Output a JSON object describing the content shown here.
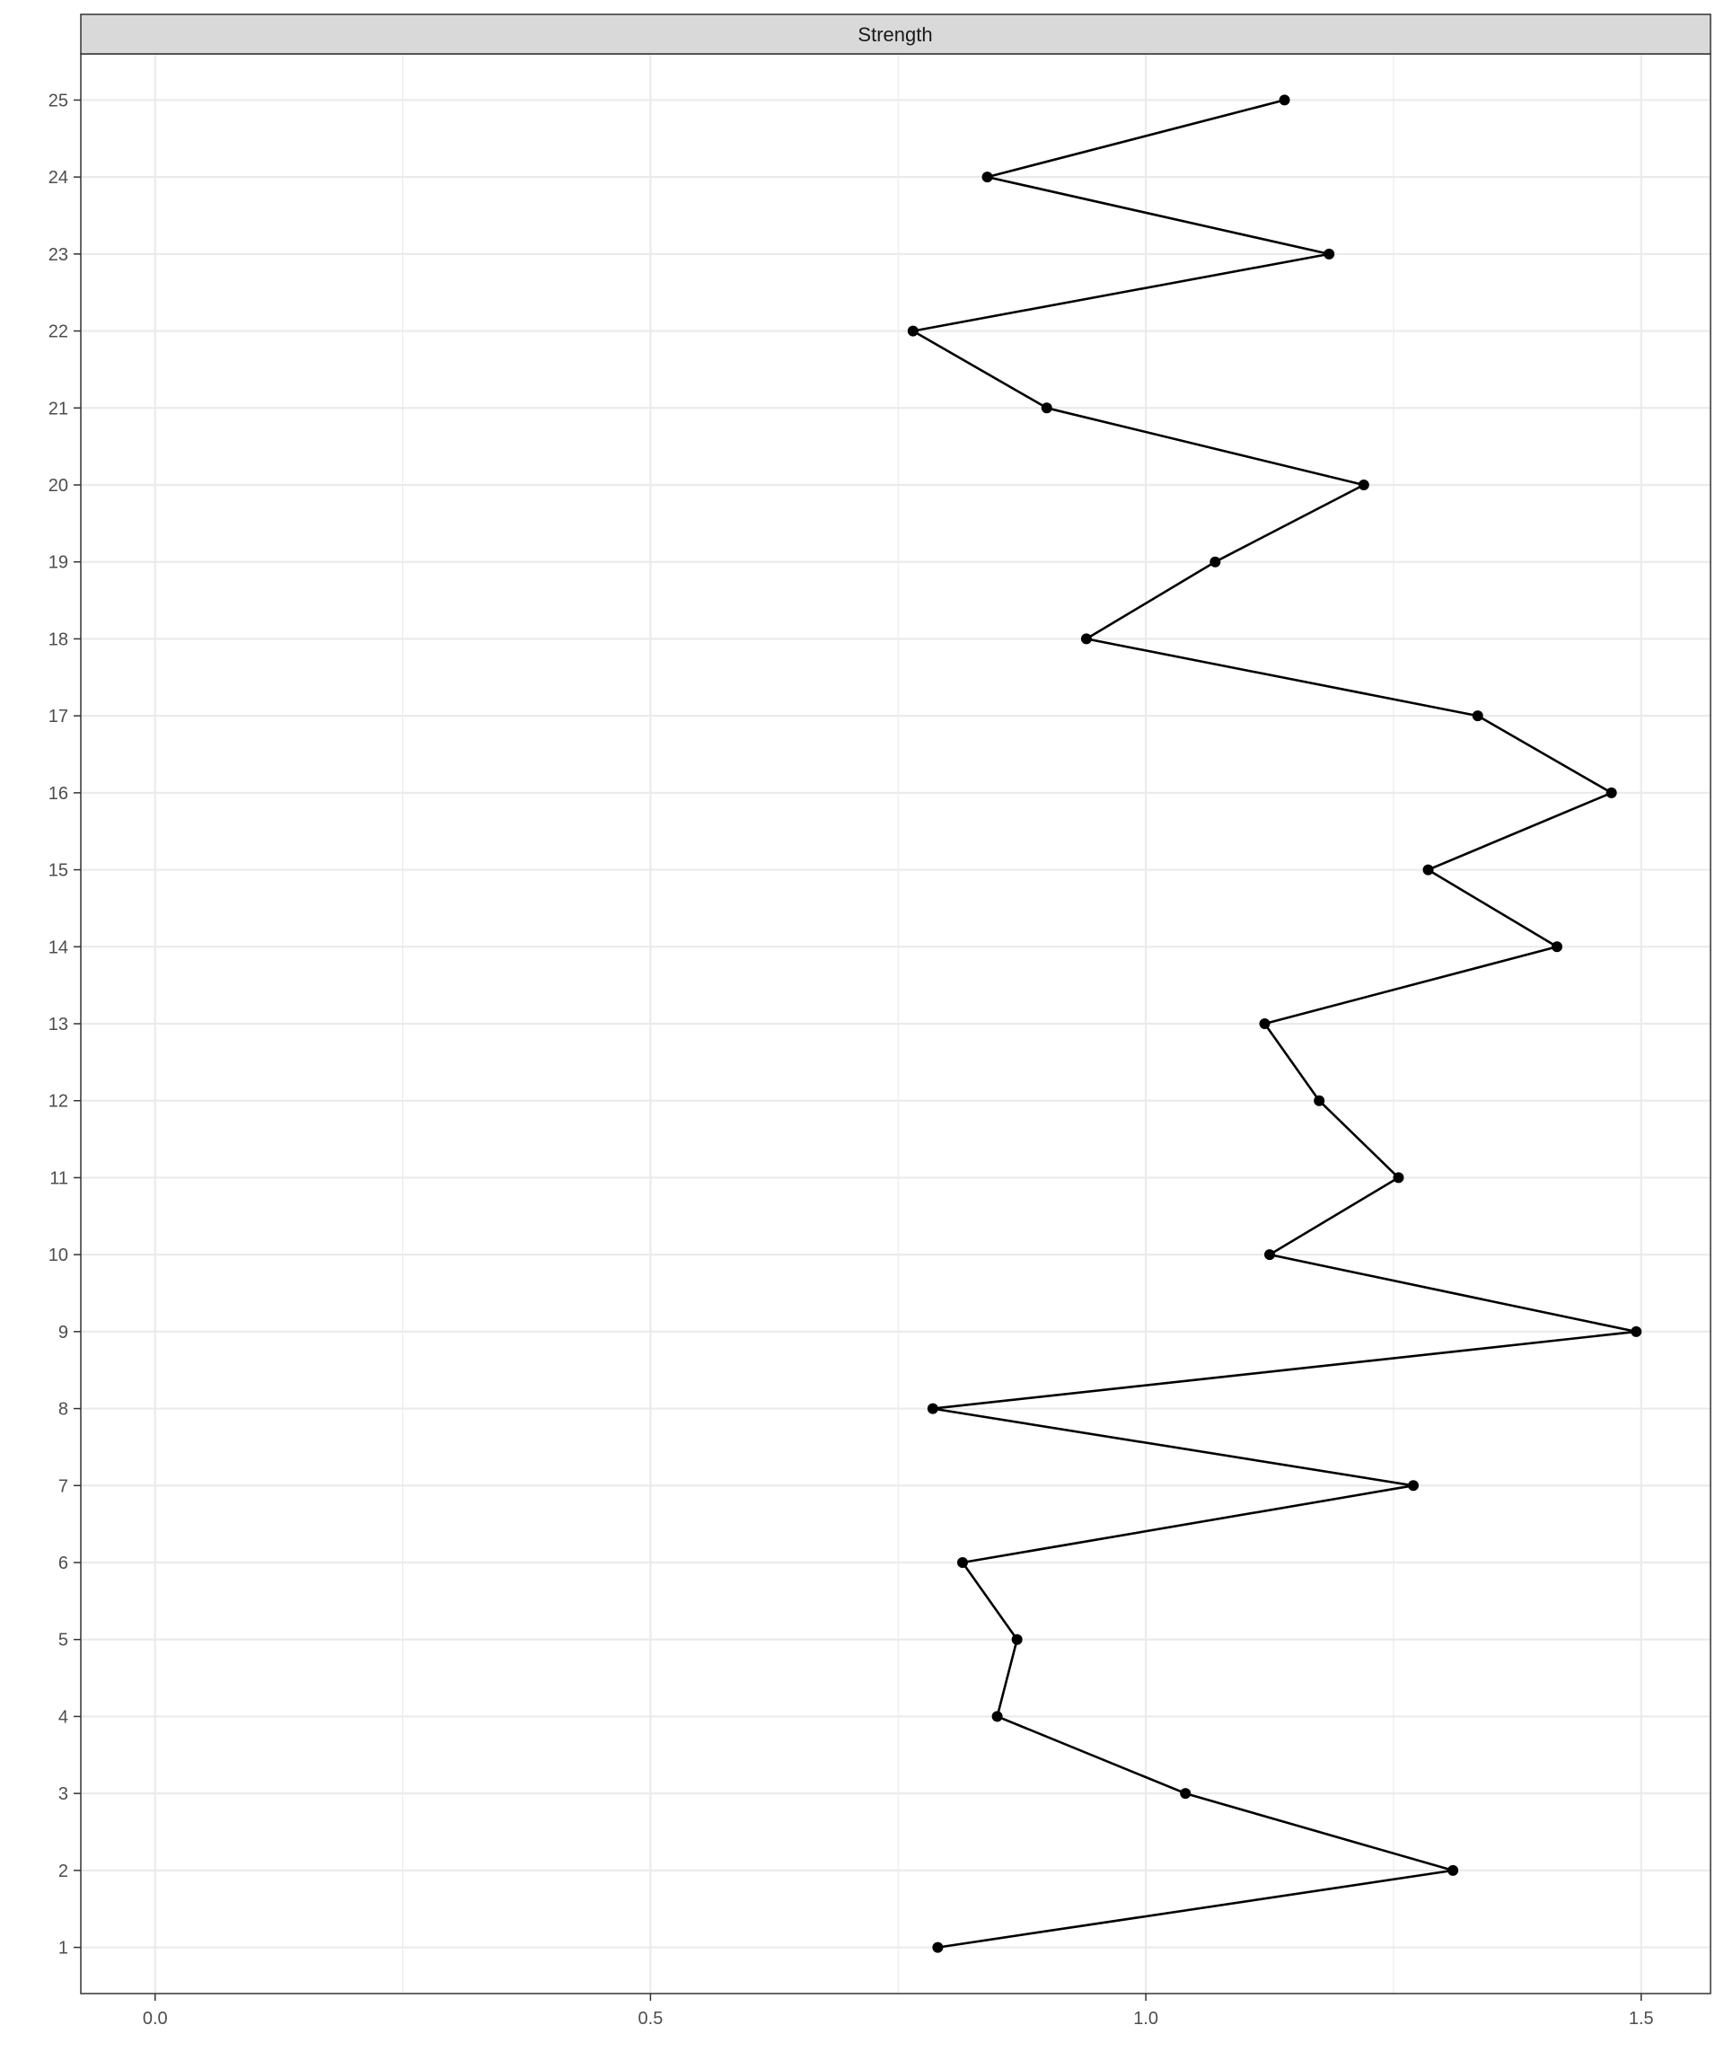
{
  "chart_data": {
    "type": "line",
    "panel_title": "Strength",
    "xlabel": "",
    "ylabel": "",
    "xlim": [
      -0.075,
      1.57
    ],
    "ylim": [
      0.4,
      25.6
    ],
    "x_ticks": [
      0.0,
      0.25,
      0.5,
      0.75,
      1.0,
      1.25,
      1.5
    ],
    "x_tick_labels": [
      "0.0",
      "",
      "0.5",
      "",
      "1.0",
      "",
      "1.5"
    ],
    "y_ticks": [
      1,
      2,
      3,
      4,
      5,
      6,
      7,
      8,
      9,
      10,
      11,
      12,
      13,
      14,
      15,
      16,
      17,
      18,
      19,
      20,
      21,
      22,
      23,
      24,
      25
    ],
    "y_tick_labels": [
      "1",
      "2",
      "3",
      "4",
      "5",
      "6",
      "7",
      "8",
      "9",
      "10",
      "11",
      "12",
      "13",
      "14",
      "15",
      "16",
      "17",
      "18",
      "19",
      "20",
      "21",
      "22",
      "23",
      "24",
      "25"
    ],
    "grid": true,
    "series": [
      {
        "color": "#000000",
        "points": [
          {
            "y": 1,
            "x": 0.79
          },
          {
            "y": 2,
            "x": 1.31
          },
          {
            "y": 3,
            "x": 1.04
          },
          {
            "y": 4,
            "x": 0.85
          },
          {
            "y": 5,
            "x": 0.87
          },
          {
            "y": 6,
            "x": 0.815
          },
          {
            "y": 7,
            "x": 1.27
          },
          {
            "y": 8,
            "x": 0.785
          },
          {
            "y": 9,
            "x": 1.495
          },
          {
            "y": 10,
            "x": 1.125
          },
          {
            "y": 11,
            "x": 1.255
          },
          {
            "y": 12,
            "x": 1.175
          },
          {
            "y": 13,
            "x": 1.12
          },
          {
            "y": 14,
            "x": 1.415
          },
          {
            "y": 15,
            "x": 1.285
          },
          {
            "y": 16,
            "x": 1.47
          },
          {
            "y": 17,
            "x": 1.335
          },
          {
            "y": 18,
            "x": 0.94
          },
          {
            "y": 19,
            "x": 1.07
          },
          {
            "y": 20,
            "x": 1.22
          },
          {
            "y": 21,
            "x": 0.9
          },
          {
            "y": 22,
            "x": 0.765
          },
          {
            "y": 23,
            "x": 1.185
          },
          {
            "y": 24,
            "x": 0.84
          },
          {
            "y": 25,
            "x": 1.14
          }
        ]
      }
    ]
  }
}
